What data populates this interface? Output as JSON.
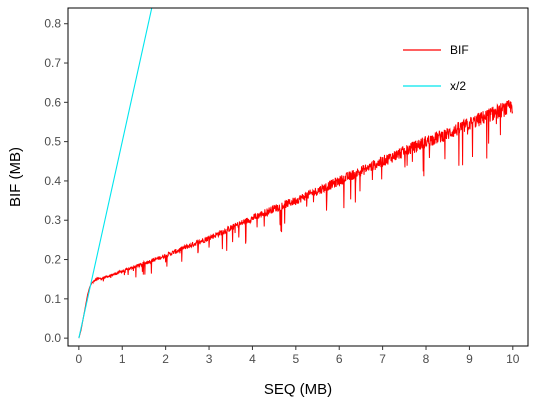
{
  "chart_data": {
    "type": "line",
    "xlabel": "SEQ (MB)",
    "ylabel": "BIF (MB)",
    "xlim": [
      -0.25,
      10.35
    ],
    "ylim": [
      -0.02,
      0.84
    ],
    "x_ticks": [
      0,
      1,
      2,
      3,
      4,
      5,
      6,
      7,
      8,
      9,
      10
    ],
    "y_ticks": [
      0.0,
      0.1,
      0.2,
      0.3,
      0.4,
      0.5,
      0.6,
      0.7,
      0.8
    ],
    "x_tick_labels": [
      "0",
      "1",
      "2",
      "3",
      "4",
      "5",
      "6",
      "7",
      "8",
      "9",
      "10"
    ],
    "y_tick_labels": [
      "0.0",
      "0.1",
      "0.2",
      "0.3",
      "0.4",
      "0.5",
      "0.6",
      "0.7",
      "0.8"
    ],
    "grid": false,
    "legend_position": "top-right",
    "series": [
      {
        "name": "BIF",
        "color": "#ff0000",
        "style": "noisy",
        "x": [
          0.0,
          0.05,
          0.1,
          0.15,
          0.2,
          0.25,
          0.3,
          0.35,
          0.4,
          0.5,
          0.6,
          0.8,
          1.0,
          1.5,
          2.0,
          2.5,
          3.0,
          3.5,
          4.0,
          4.5,
          5.0,
          5.5,
          6.0,
          6.5,
          7.0,
          7.5,
          8.0,
          8.5,
          9.0,
          9.5,
          10.0
        ],
        "y": [
          0.0,
          0.02,
          0.05,
          0.08,
          0.11,
          0.13,
          0.14,
          0.145,
          0.15,
          0.152,
          0.155,
          0.162,
          0.17,
          0.19,
          0.21,
          0.233,
          0.255,
          0.28,
          0.305,
          0.33,
          0.35,
          0.375,
          0.4,
          0.425,
          0.45,
          0.475,
          0.5,
          0.52,
          0.545,
          0.57,
          0.59
        ]
      },
      {
        "name": "x/2",
        "color": "#00e5ee",
        "style": "line",
        "x": [
          0.0,
          1.68
        ],
        "y": [
          0.0,
          0.84
        ]
      }
    ]
  }
}
